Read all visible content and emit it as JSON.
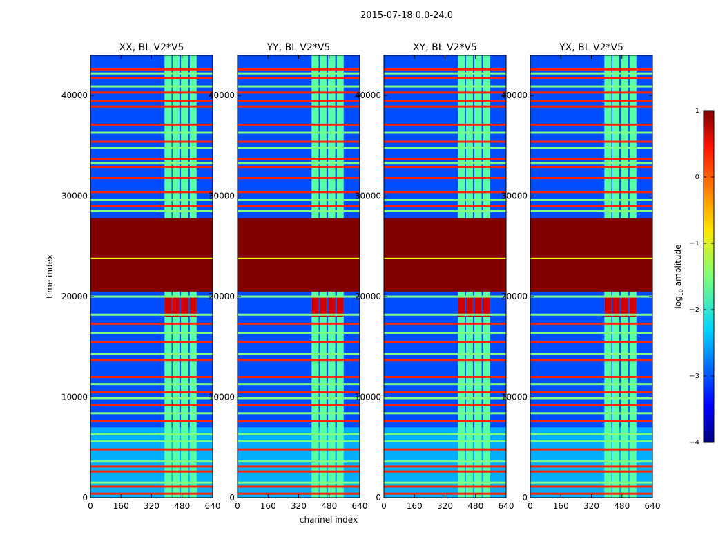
{
  "chart_data": {
    "type": "heatmap",
    "title": "2015-07-18 0.0-24.0",
    "xlabel": "channel index",
    "ylabel": "time index",
    "xlim": [
      0,
      640
    ],
    "ylim": [
      0,
      44000
    ],
    "xticks": [
      0,
      160,
      320,
      480,
      640
    ],
    "yticks": [
      0,
      10000,
      20000,
      30000,
      40000
    ],
    "xtick_labels": [
      "0",
      "160",
      "320",
      "480",
      "640"
    ],
    "ytick_labels": [
      "0",
      "10000",
      "20000",
      "30000",
      "40000"
    ],
    "panels": [
      {
        "title": "XX, BL V2*V5",
        "pol": "XX"
      },
      {
        "title": "YY, BL V2*V5",
        "pol": "YY"
      },
      {
        "title": "XY, BL V2*V5",
        "pol": "XY"
      },
      {
        "title": "YX, BL V2*V5",
        "pol": "YX"
      }
    ],
    "colorbar": {
      "label_prefix": "log",
      "label_sub": "10",
      "label_suffix": " amplitude",
      "range": [
        -4,
        1
      ],
      "ticks": [
        1,
        0,
        -1,
        -2,
        -3,
        -4
      ],
      "tick_labels": [
        "1",
        "0",
        "−1",
        "−2",
        "−3",
        "−4"
      ],
      "colormap": "jet"
    },
    "features": {
      "saturated_time_band": [
        20500,
        27800
      ],
      "saturated_value": 1,
      "background_value": -3,
      "high_channel_bands": [
        [
          388,
          425
        ],
        [
          430,
          466
        ],
        [
          474,
          512
        ],
        [
          520,
          556
        ]
      ],
      "burst_time_range": [
        18000,
        20000
      ],
      "flagged_rows_high": [
        400,
        1100,
        2600,
        3100,
        4800,
        7600,
        9200,
        10500,
        12000,
        13700,
        15500,
        17300,
        29000,
        30400,
        31800,
        32900,
        33700,
        35400,
        37100,
        38900,
        39500,
        40300,
        41700,
        42600
      ],
      "flagged_rows_mid": [
        1500,
        3600,
        5600,
        6300,
        8400,
        9900,
        11300,
        14300,
        16400,
        18200,
        20000,
        23800,
        28500,
        29600,
        33300,
        34800,
        36300,
        40900,
        42200
      ]
    }
  }
}
